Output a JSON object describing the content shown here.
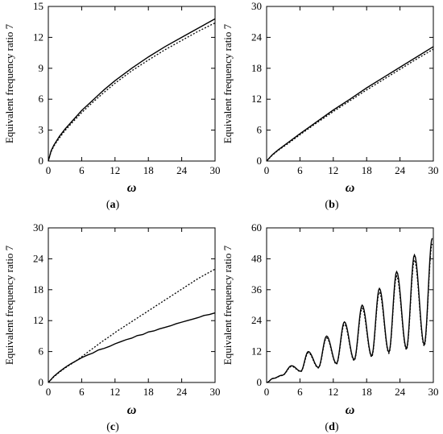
{
  "chart_data": [
    {
      "type": "line",
      "caption": "a",
      "xlabel": "ω",
      "ylabel": "Equivalent frequency ratio 7",
      "xlim": [
        0,
        30
      ],
      "ylim": [
        0,
        15
      ],
      "xticks": [
        0,
        6,
        12,
        18,
        24,
        30
      ],
      "yticks": [
        0,
        3,
        6,
        9,
        12,
        15
      ],
      "grid": false,
      "series": [
        {
          "style": "solid",
          "x": [
            0,
            0.5,
            1,
            2,
            3,
            4,
            6,
            8,
            10,
            12,
            15,
            18,
            21,
            24,
            27,
            30
          ],
          "y": [
            0,
            1.0,
            1.55,
            2.4,
            3.1,
            3.7,
            4.9,
            5.9,
            6.9,
            7.8,
            9.0,
            10.1,
            11.1,
            12.0,
            12.9,
            13.8
          ]
        },
        {
          "style": "dotted",
          "x": [
            0,
            0.5,
            1,
            2,
            3,
            4,
            6,
            8,
            10,
            12,
            15,
            18,
            21,
            24,
            27,
            30
          ],
          "y": [
            0,
            0.9,
            1.45,
            2.25,
            2.95,
            3.55,
            4.7,
            5.7,
            6.65,
            7.55,
            8.75,
            9.8,
            10.8,
            11.7,
            12.6,
            13.4
          ]
        }
      ]
    },
    {
      "type": "line",
      "caption": "b",
      "xlabel": "ω",
      "ylabel": "Equivalent frequency ratio 7",
      "xlim": [
        0,
        30
      ],
      "ylim": [
        0,
        30
      ],
      "xticks": [
        0,
        6,
        12,
        18,
        24,
        30
      ],
      "yticks": [
        0,
        6,
        12,
        18,
        24,
        30
      ],
      "grid": false,
      "series": [
        {
          "style": "solid",
          "x": [
            0,
            1,
            2,
            4,
            6,
            9,
            12,
            15,
            18,
            21,
            24,
            27,
            30
          ],
          "y": [
            0,
            1.2,
            2.1,
            3.7,
            5.3,
            7.6,
            9.9,
            12.0,
            14.2,
            16.2,
            18.2,
            20.2,
            22.2
          ]
        },
        {
          "style": "dotted",
          "x": [
            0,
            1,
            2,
            4,
            6,
            9,
            12,
            15,
            18,
            21,
            24,
            27,
            30
          ],
          "y": [
            0,
            1.1,
            2.0,
            3.5,
            5.1,
            7.4,
            9.6,
            11.7,
            13.8,
            15.8,
            17.8,
            19.8,
            21.7
          ]
        }
      ]
    },
    {
      "type": "line",
      "caption": "c",
      "xlabel": "ω",
      "ylabel": "Equivalent frequency ratio 7",
      "xlim": [
        0,
        30
      ],
      "ylim": [
        0,
        30
      ],
      "xticks": [
        0,
        6,
        12,
        18,
        24,
        30
      ],
      "yticks": [
        0,
        6,
        12,
        18,
        24,
        30
      ],
      "grid": false,
      "series": [
        {
          "style": "solid",
          "x": [
            0,
            1,
            2,
            3,
            4,
            5,
            6,
            7,
            8,
            9,
            10,
            11,
            12,
            13,
            14,
            15,
            16,
            17,
            18,
            19,
            20,
            21,
            22,
            23,
            24,
            25,
            26,
            27,
            28,
            29,
            30
          ],
          "y": [
            0,
            1.2,
            2.1,
            2.9,
            3.6,
            4.2,
            4.8,
            5.3,
            5.7,
            6.3,
            6.6,
            7.0,
            7.5,
            7.9,
            8.3,
            8.6,
            9.1,
            9.3,
            9.8,
            10.0,
            10.4,
            10.7,
            11.0,
            11.4,
            11.7,
            12.0,
            12.3,
            12.6,
            13.0,
            13.2,
            13.5
          ]
        },
        {
          "style": "dotted",
          "x": [
            0,
            1,
            2,
            3,
            4,
            5,
            6,
            7,
            8,
            9,
            10,
            11,
            12,
            13,
            14,
            15,
            16,
            17,
            18,
            19,
            20,
            21,
            22,
            23,
            24,
            25,
            26,
            27,
            28,
            29,
            30
          ],
          "y": [
            0,
            1.1,
            2.0,
            2.8,
            3.5,
            4.2,
            5.0,
            5.8,
            6.6,
            7.4,
            8.2,
            8.9,
            9.7,
            10.4,
            11.1,
            11.8,
            12.5,
            13.2,
            13.9,
            14.6,
            15.3,
            16.0,
            16.7,
            17.4,
            18.1,
            18.8,
            19.5,
            20.2,
            20.8,
            21.4,
            22.0
          ]
        }
      ]
    },
    {
      "type": "line",
      "caption": "d",
      "xlabel": "ω",
      "ylabel": "Equivalent frequency ratio 7",
      "xlim": [
        0,
        30
      ],
      "ylim": [
        0,
        60
      ],
      "xticks": [
        0,
        6,
        12,
        18,
        24,
        30
      ],
      "yticks": [
        0,
        12,
        24,
        36,
        48,
        60
      ],
      "grid": false,
      "oscillation": {
        "base_start": 1.5,
        "base_end": 15.5,
        "peaks": [
          {
            "x": 4.5,
            "y": 6.5
          },
          {
            "x": 7.5,
            "y": 12.0
          },
          {
            "x": 10.8,
            "y": 18.0
          },
          {
            "x": 14.0,
            "y": 23.5
          },
          {
            "x": 17.2,
            "y": 30.0
          },
          {
            "x": 20.3,
            "y": 36.5
          },
          {
            "x": 23.4,
            "y": 43.0
          },
          {
            "x": 26.6,
            "y": 49.5
          },
          {
            "x": 29.8,
            "y": 56.0
          }
        ]
      },
      "series": [
        {
          "style": "solid",
          "y_scale": 1.0
        },
        {
          "style": "dotted",
          "y_scale": 0.96
        }
      ]
    }
  ],
  "panels_layout": [
    "a",
    "b",
    "c",
    "d"
  ]
}
